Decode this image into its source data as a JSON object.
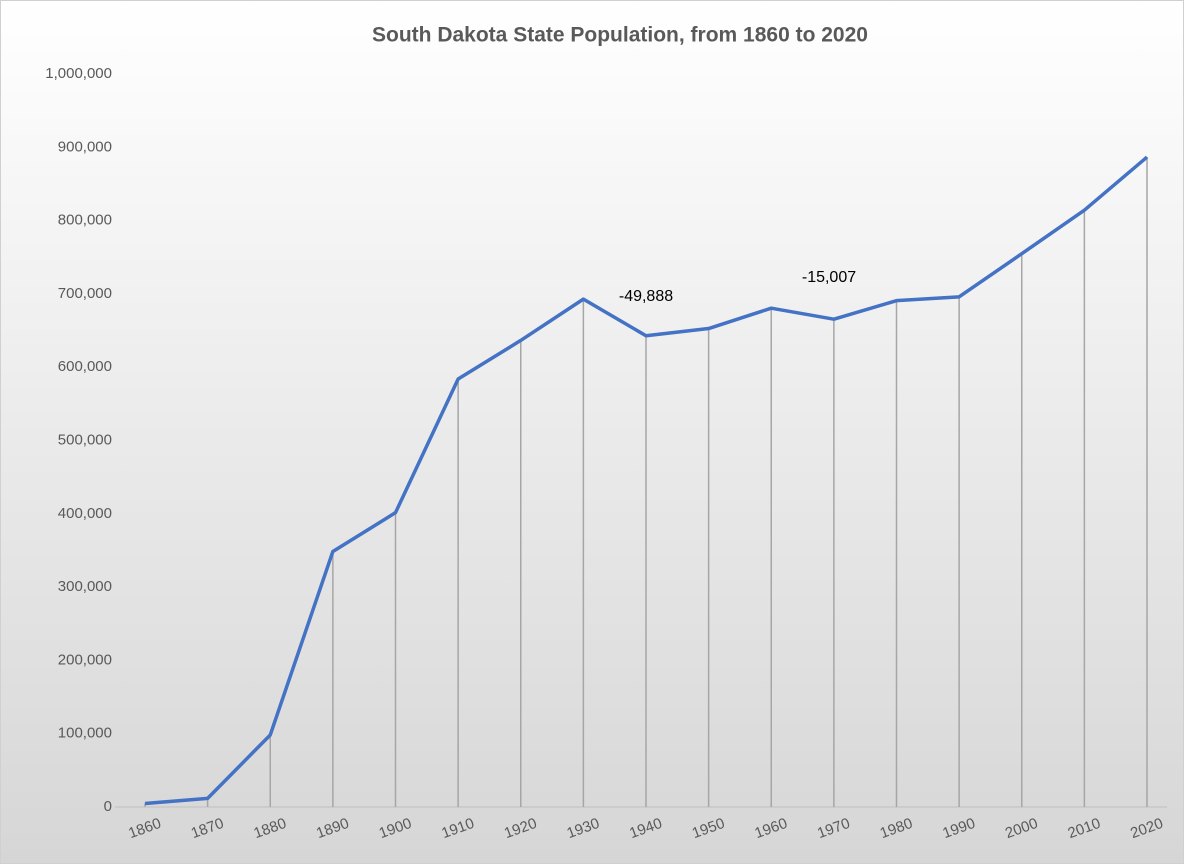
{
  "chart_data": {
    "type": "line",
    "title": "South Dakota State Population, from 1860 to 2020",
    "categories": [
      "1860",
      "1870",
      "1880",
      "1890",
      "1900",
      "1910",
      "1920",
      "1930",
      "1940",
      "1950",
      "1960",
      "1970",
      "1980",
      "1990",
      "2000",
      "2010",
      "2020"
    ],
    "series": [
      {
        "name": "Population",
        "color": "#4472c4",
        "values": [
          4837,
          11776,
          98268,
          348600,
          401570,
          583888,
          636547,
          692849,
          642961,
          652740,
          680514,
          665507,
          690768,
          696004,
          754844,
          814180,
          886667
        ]
      }
    ],
    "ylim": [
      0,
      1000000
    ],
    "yticks": [
      0,
      {
        "value": 100000,
        "label": "100,000"
      },
      {
        "value": 200000,
        "label": "200,000"
      },
      {
        "value": 300000,
        "label": "300,000"
      },
      {
        "value": 400000,
        "label": "400,000"
      },
      {
        "value": 500000,
        "label": "500,000"
      },
      {
        "value": 600000,
        "label": "600,000"
      },
      {
        "value": 700000,
        "label": "700,000"
      },
      {
        "value": 800000,
        "label": "800,000"
      },
      {
        "value": 900000,
        "label": "900,000"
      },
      {
        "value": 1000000,
        "label": "1,000,000"
      }
    ],
    "drop_lines": true,
    "drop_line_color": "#a6a6a6",
    "annotations": [
      "-49,888",
      "-15,007"
    ]
  }
}
